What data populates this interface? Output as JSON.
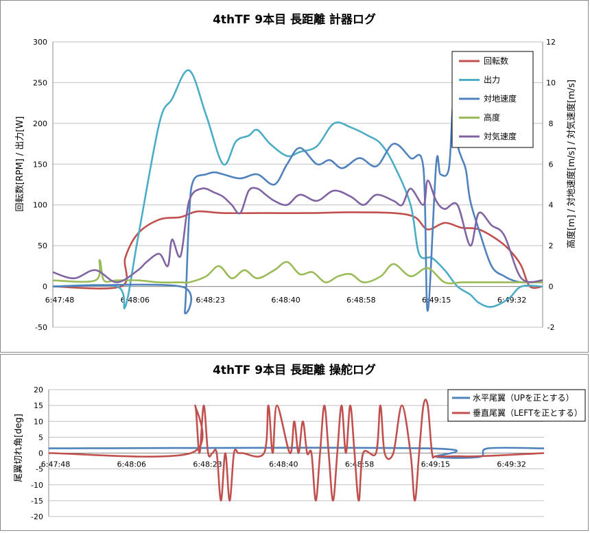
{
  "charts": [
    {
      "type": "line",
      "title": "4thTF 9本目 長距離 計器ログ",
      "ylabel_left": "回転数[RPM] / 出力[W]",
      "ylabel_right": "高度[m] / 対地速度[m/s] / 対気速度[m/s]",
      "x_ticks": [
        "6:47:48",
        "6:48:06",
        "6:48:23",
        "6:48:40",
        "6:48:58",
        "6:49:15",
        "6:49:32"
      ],
      "x_range": [
        0,
        115
      ],
      "y_left_ticks": [
        "300",
        "250",
        "200",
        "150",
        "100",
        "50",
        "0",
        "-50"
      ],
      "y_left_range": [
        -50,
        300
      ],
      "y_right_ticks": [
        "12",
        "10",
        "8",
        "6",
        "4",
        "2",
        "0",
        "-2"
      ],
      "y_right_range": [
        -2,
        12
      ],
      "grid": "horizontal",
      "legend_position": "top-right",
      "legend": [
        "回転数",
        "出力",
        "対地速度",
        "高度",
        "対気速度"
      ],
      "colors": [
        "#c0504d",
        "#4bacc6",
        "#4f81bd",
        "#9bbb59",
        "#8064a2"
      ],
      "series": [
        {
          "name": "回転数",
          "axis": "left",
          "x": [
            0,
            16,
            17,
            20,
            25,
            30,
            34,
            40,
            50,
            60,
            70,
            80,
            85,
            88,
            92,
            96,
            100,
            105,
            108,
            110,
            112,
            115
          ],
          "y": [
            0,
            0,
            35,
            65,
            82,
            85,
            92,
            90,
            90,
            90,
            91,
            90,
            85,
            70,
            78,
            72,
            70,
            55,
            40,
            25,
            0,
            0
          ]
        },
        {
          "name": "出力",
          "axis": "left",
          "x": [
            0,
            15,
            17,
            20,
            25,
            28,
            32,
            36,
            40,
            43,
            46,
            48,
            51,
            55,
            58,
            62,
            66,
            70,
            74,
            77,
            80,
            84,
            86,
            89,
            92,
            95,
            98,
            100,
            103,
            107,
            110,
            115
          ],
          "y": [
            0,
            0,
            -25,
            60,
            200,
            230,
            265,
            210,
            150,
            178,
            185,
            192,
            175,
            160,
            165,
            172,
            200,
            195,
            185,
            175,
            150,
            100,
            40,
            35,
            20,
            0,
            -10,
            -20,
            -25,
            -15,
            0,
            0
          ]
        },
        {
          "name": "対地速度",
          "axis": "right",
          "x": [
            0,
            30,
            31,
            32,
            33,
            36,
            38,
            40,
            44,
            48,
            52,
            55,
            58,
            62,
            65,
            68,
            72,
            76,
            80,
            84,
            87,
            88,
            90,
            91,
            93,
            94,
            95,
            96,
            97,
            98,
            100,
            103,
            106,
            108,
            110,
            112,
            115
          ],
          "y": [
            0,
            0,
            -1.2,
            3.5,
            5.2,
            5.5,
            5.6,
            5.5,
            5.3,
            5.5,
            5.0,
            6.0,
            6.8,
            6.0,
            6.2,
            5.8,
            6.3,
            5.9,
            7.0,
            6.3,
            5.8,
            -1.2,
            6.0,
            5.5,
            5.8,
            9.0,
            7.0,
            6.3,
            5.7,
            4.2,
            2.8,
            1.0,
            0.5,
            0.3,
            0.2,
            0.2,
            0.2
          ]
        },
        {
          "name": "高度",
          "axis": "right",
          "x": [
            0,
            10,
            11,
            12,
            15,
            20,
            25,
            30,
            32,
            36,
            39,
            42,
            45,
            48,
            52,
            55,
            58,
            61,
            64,
            67,
            70,
            73,
            77,
            80,
            84,
            88,
            92,
            96,
            100,
            105,
            110,
            115
          ],
          "y": [
            0.3,
            0.3,
            1.3,
            0.3,
            0.3,
            0.3,
            0.2,
            0.2,
            0.2,
            0.5,
            1.0,
            0.4,
            0.8,
            0.4,
            0.8,
            1.2,
            0.6,
            0.7,
            0.2,
            0.5,
            0.6,
            0.2,
            0.5,
            1.1,
            0.5,
            0.9,
            0.2,
            0.2,
            0.2,
            0.2,
            0.2,
            0.2
          ]
        },
        {
          "name": "対気速度",
          "axis": "right",
          "x": [
            0,
            5,
            10,
            15,
            20,
            22,
            25,
            27,
            28,
            30,
            32,
            35,
            38,
            40,
            42,
            44,
            46,
            48,
            50,
            52,
            55,
            58,
            62,
            66,
            70,
            73,
            76,
            80,
            82,
            84,
            87,
            88,
            90,
            92,
            95,
            98,
            100,
            103,
            106,
            110,
            115
          ],
          "y": [
            0.7,
            0.4,
            0.8,
            0.2,
            0.8,
            1.2,
            1.6,
            1.0,
            2.3,
            1.5,
            4.2,
            4.8,
            4.6,
            4.4,
            4.0,
            3.6,
            4.7,
            4.8,
            4.5,
            4.2,
            4.0,
            4.5,
            4.2,
            4.7,
            4.4,
            4.0,
            4.5,
            4.2,
            4.0,
            4.8,
            4.0,
            5.2,
            4.2,
            3.8,
            4.0,
            2.0,
            3.6,
            3.0,
            2.5,
            0.4,
            0.3
          ]
        }
      ]
    },
    {
      "type": "line",
      "title": "4thTF 9本目 長距離 操舵ログ",
      "ylabel": "尾翼切れ角[deg]",
      "x_ticks": [
        "6:47:48",
        "6:48:06",
        "6:48:23",
        "6:48:40",
        "6:48:58",
        "6:49:15",
        "6:49:32"
      ],
      "x_range": [
        0,
        115
      ],
      "y_ticks": [
        "20",
        "15",
        "10",
        "5",
        "0",
        "-5",
        "-10",
        "-15",
        "-20"
      ],
      "y_range": [
        -20,
        20
      ],
      "grid": "horizontal",
      "legend_position": "top-right",
      "legend": [
        "水平尾翼（UPを正とする）",
        "垂直尾翼（LEFTを正とする）"
      ],
      "colors": [
        "#4f81bd",
        "#c0504d"
      ],
      "series": [
        {
          "name": "水平尾翼（UPを正とする）",
          "x": [
            0,
            88,
            90,
            100,
            102,
            115
          ],
          "y": [
            1.5,
            1.5,
            -1.2,
            -1.2,
            1.5,
            1.5
          ]
        },
        {
          "name": "垂直尾翼（LEFTを正とする）",
          "x": [
            0,
            33,
            34,
            35,
            36,
            37,
            38,
            39,
            40,
            41,
            42,
            43,
            44,
            45,
            50,
            51,
            52,
            53,
            56,
            57,
            58,
            59,
            60,
            61,
            62,
            63,
            64,
            65,
            66,
            67,
            68,
            69,
            70,
            71,
            72,
            73,
            76,
            77,
            78,
            80,
            82,
            84,
            85,
            86,
            87,
            88,
            89,
            90,
            95,
            100,
            115
          ],
          "y": [
            0,
            0,
            15,
            0,
            15,
            0,
            0,
            0,
            -15,
            0,
            -15,
            0,
            0,
            0,
            0,
            15,
            0,
            15,
            0,
            10,
            0,
            10,
            0,
            0,
            -15,
            0,
            15,
            0,
            -15,
            0,
            15,
            0,
            15,
            0,
            -15,
            0,
            0,
            15,
            0,
            0,
            15,
            0,
            -15,
            0,
            15,
            15,
            0,
            -1,
            -1,
            -1,
            0
          ]
        }
      ]
    }
  ]
}
